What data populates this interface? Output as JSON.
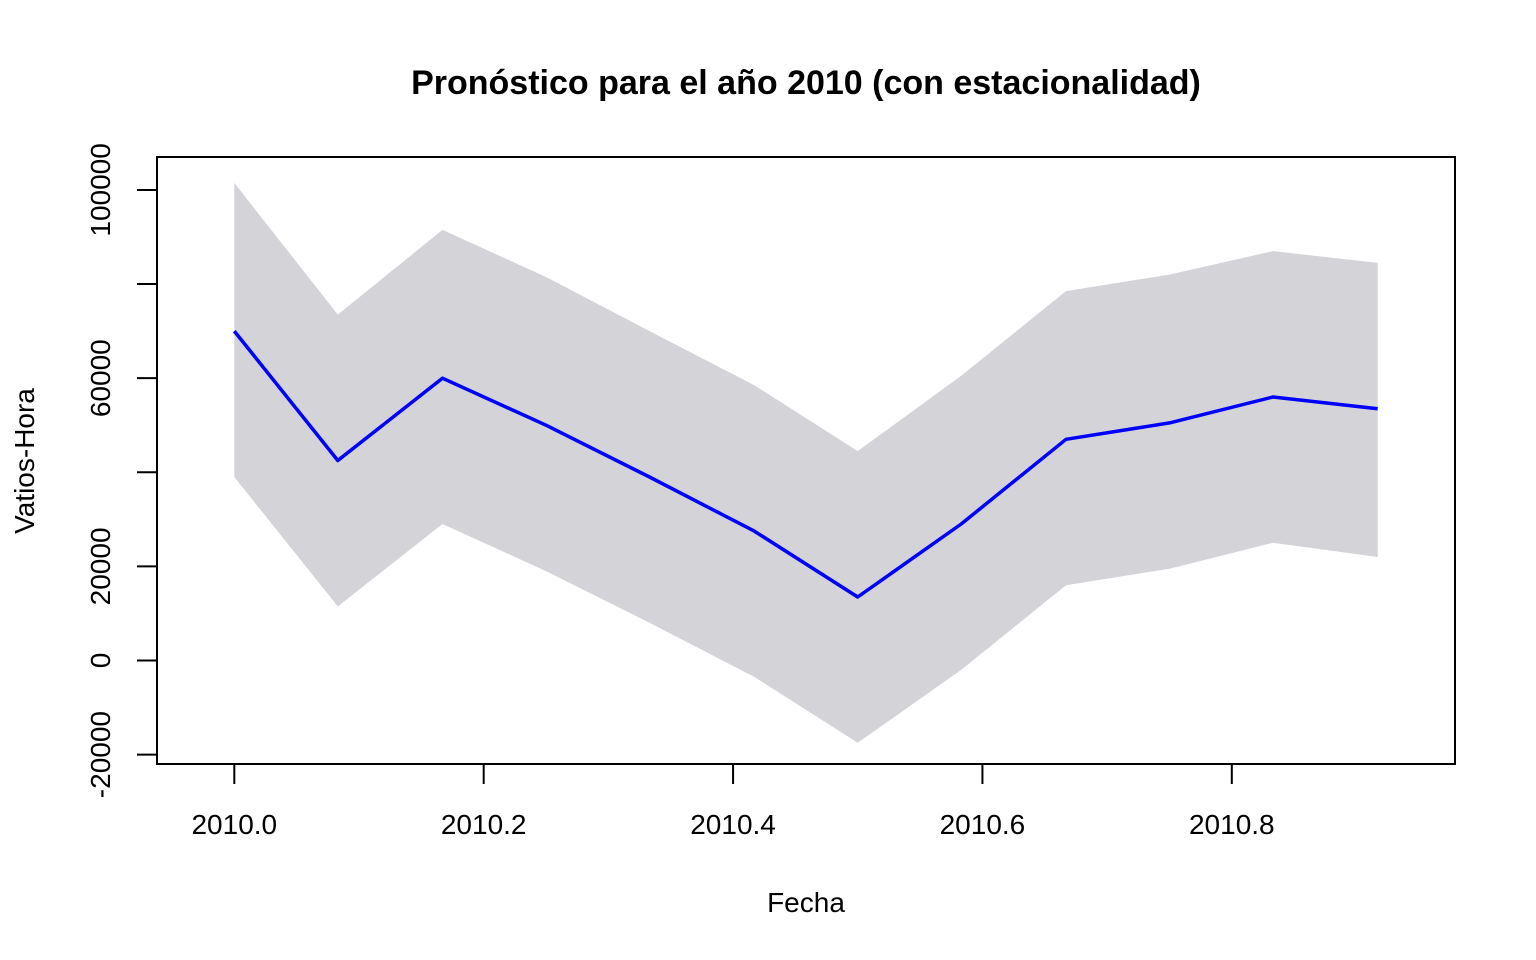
{
  "chart_data": {
    "type": "line",
    "title": "Pronóstico para el año 2010 (con estacionalidad)",
    "xlabel": "Fecha",
    "ylabel": "Vatios-Hora",
    "xlim": [
      2009.938,
      2010.979
    ],
    "ylim": [
      -22000,
      107000
    ],
    "x_ticks": [
      2010.0,
      2010.2,
      2010.4,
      2010.6,
      2010.8
    ],
    "x_tick_labels": [
      "2010.0",
      "2010.2",
      "2010.4",
      "2010.6",
      "2010.8"
    ],
    "y_ticks": [
      -20000,
      0,
      20000,
      40000,
      60000,
      80000,
      100000
    ],
    "y_tick_labels": [
      "-20000",
      "0",
      "20000",
      "",
      "60000",
      "",
      "100000"
    ],
    "grid": false,
    "x": [
      2010.0,
      2010.083,
      2010.167,
      2010.25,
      2010.333,
      2010.417,
      2010.5,
      2010.583,
      2010.667,
      2010.75,
      2010.833,
      2010.917
    ],
    "series": [
      {
        "role": "forecast",
        "color": "#0000ff",
        "values": [
          70000,
          42500,
          60000,
          50000,
          39000,
          27500,
          13500,
          29000,
          47000,
          50500,
          56000,
          53500
        ]
      },
      {
        "role": "interval-upper",
        "color": "#d3d3d8",
        "values": [
          101500,
          73500,
          91500,
          81500,
          70000,
          58500,
          44500,
          60500,
          78500,
          82000,
          87000,
          84500
        ]
      },
      {
        "role": "interval-lower",
        "color": "#d3d3d8",
        "values": [
          39000,
          11500,
          29000,
          19000,
          8000,
          -3500,
          -17500,
          -2000,
          16000,
          19500,
          25000,
          22000
        ]
      }
    ]
  }
}
